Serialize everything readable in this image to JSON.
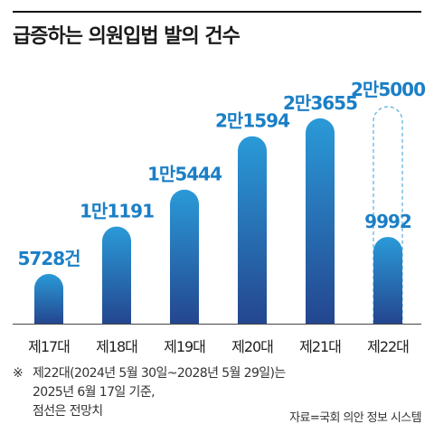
{
  "title": "급증하는 의원입법 발의 건수",
  "chart_data": {
    "type": "bar",
    "categories": [
      "제17대",
      "제18대",
      "제19대",
      "제20대",
      "제21대",
      "제22대"
    ],
    "values": [
      5728,
      11191,
      15444,
      21594,
      23655,
      9992
    ],
    "value_labels": [
      "5728건",
      "1만1191",
      "1만5444",
      "2만1594",
      "2만3655",
      "9992"
    ],
    "projection": {
      "category": "제22대",
      "value": 25000,
      "label": "2만5000",
      "style": "dashed-outline"
    },
    "title": "급증하는 의원입법 발의 건수",
    "xlabel": "",
    "ylabel": "",
    "ylim": [
      0,
      25000
    ],
    "grid": false,
    "colors": {
      "bar_top": "#2a9ad8",
      "bar_bottom": "#24468f",
      "label": "#1b7fc6",
      "projection_outline": "#5aaee0"
    }
  },
  "note": {
    "mark": "※",
    "text": "제22대(2024년 5월 30일~2028년 5월 29일)는\n2025년 6월 17일 기준,\n점선은 전망치"
  },
  "source": "자료=국회 의안 정보 시스템"
}
